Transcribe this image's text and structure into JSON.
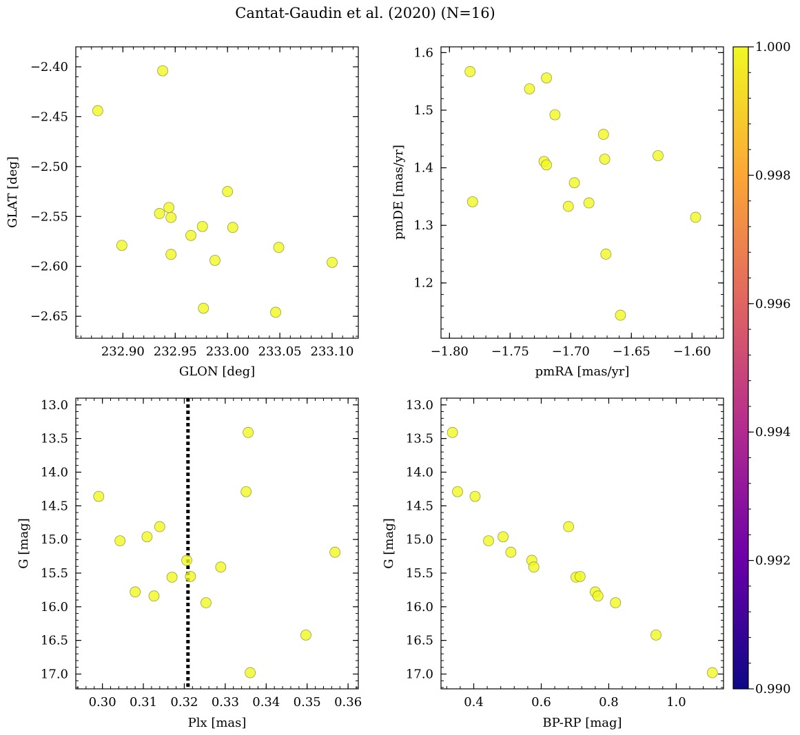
{
  "figure": {
    "title": "Cantat-Gaudin et al. (2020) (N=16)"
  },
  "colorbar": {
    "min": 0.99,
    "max": 1.0,
    "ticks": [
      0.99,
      0.992,
      0.994,
      0.996,
      0.998,
      1.0
    ],
    "tick_labels": [
      "0.990",
      "0.992",
      "0.994",
      "0.996",
      "0.998",
      "1.000"
    ],
    "colormap": "plasma",
    "stops": [
      "#0d0887",
      "#6a00a8",
      "#b12a90",
      "#e16462",
      "#fca636",
      "#f0f921"
    ]
  },
  "marker": {
    "fill": "#f0f921",
    "opacity": 0.8,
    "edge": "#9c9c3a"
  },
  "chart_data": [
    {
      "type": "scatter",
      "name": "glon-glat",
      "xlabel": "GLON [deg]",
      "ylabel": "GLAT [deg]",
      "xlim": [
        232.855,
        233.125
      ],
      "ylim": [
        -2.672,
        -2.38
      ],
      "invert_y": false,
      "xticks": [
        232.9,
        232.95,
        233.0,
        233.05,
        233.1
      ],
      "xtick_labels": [
        "232.90",
        "232.95",
        "233.00",
        "233.05",
        "233.10"
      ],
      "yticks": [
        -2.4,
        -2.45,
        -2.5,
        -2.55,
        -2.6,
        -2.65
      ],
      "ytick_labels": [
        "−2.40",
        "−2.45",
        "−2.50",
        "−2.55",
        "−2.60",
        "−2.65"
      ],
      "x_minor": 0.01,
      "y_minor": 0.01,
      "x": [
        232.876,
        232.938,
        232.899,
        232.935,
        232.944,
        232.946,
        232.946,
        232.965,
        232.976,
        232.977,
        232.988,
        233.0,
        233.005,
        233.049,
        233.046,
        233.1
      ],
      "y": [
        -2.444,
        -2.404,
        -2.579,
        -2.547,
        -2.541,
        -2.551,
        -2.588,
        -2.569,
        -2.56,
        -2.642,
        -2.594,
        -2.525,
        -2.561,
        -2.581,
        -2.646,
        -2.596
      ],
      "c": [
        1,
        1,
        1,
        1,
        1,
        1,
        1,
        1,
        1,
        1,
        1,
        1,
        1,
        1,
        1,
        1
      ]
    },
    {
      "type": "scatter",
      "name": "pmra-pmde",
      "xlabel": "pmRA [mas/yr]",
      "ylabel": "pmDE [mas/yr]",
      "xlim": [
        -1.807,
        -1.574
      ],
      "ylim": [
        1.104,
        1.61
      ],
      "invert_y": false,
      "xticks": [
        -1.8,
        -1.75,
        -1.7,
        -1.65,
        -1.6
      ],
      "xtick_labels": [
        "−1.80",
        "−1.75",
        "−1.70",
        "−1.65",
        "−1.60"
      ],
      "yticks": [
        1.2,
        1.3,
        1.4,
        1.5,
        1.6
      ],
      "ytick_labels": [
        "1.2",
        "1.3",
        "1.4",
        "1.5",
        "1.6"
      ],
      "x_minor": 0.01,
      "y_minor": 0.02,
      "x": [
        -1.783,
        -1.781,
        -1.734,
        -1.72,
        -1.722,
        -1.72,
        -1.713,
        -1.697,
        -1.702,
        -1.685,
        -1.673,
        -1.672,
        -1.671,
        -1.659,
        -1.628,
        -1.597
      ],
      "y": [
        1.567,
        1.341,
        1.537,
        1.556,
        1.411,
        1.405,
        1.492,
        1.374,
        1.333,
        1.339,
        1.458,
        1.415,
        1.25,
        1.144,
        1.421,
        1.314
      ],
      "c": [
        1,
        1,
        1,
        1,
        1,
        1,
        1,
        1,
        1,
        1,
        1,
        1,
        1,
        1,
        1,
        1
      ]
    },
    {
      "type": "scatter",
      "name": "plx-g",
      "xlabel": "Plx [mas]",
      "ylabel": "G [mag]",
      "xlim": [
        0.2935,
        0.3625
      ],
      "ylim": [
        13.0,
        17.0
      ],
      "axis_range": [
        12.9,
        17.22
      ],
      "invert_y": true,
      "xticks": [
        0.3,
        0.31,
        0.32,
        0.33,
        0.34,
        0.35,
        0.36
      ],
      "xtick_labels": [
        "0.30",
        "0.31",
        "0.32",
        "0.33",
        "0.34",
        "0.35",
        "0.36"
      ],
      "yticks": [
        13.0,
        13.5,
        14.0,
        14.5,
        15.0,
        15.5,
        16.0,
        16.5,
        17.0
      ],
      "ytick_labels": [
        "13.0",
        "13.5",
        "14.0",
        "14.5",
        "15.0",
        "15.5",
        "16.0",
        "16.5",
        "17.0"
      ],
      "x_minor": 0.002,
      "y_minor": 0.1,
      "vline": 0.3209,
      "x": [
        0.2991,
        0.3043,
        0.308,
        0.3109,
        0.3126,
        0.314,
        0.317,
        0.3206,
        0.3215,
        0.3253,
        0.3289,
        0.3351,
        0.3356,
        0.3361,
        0.3497,
        0.3568
      ],
      "y": [
        14.36,
        15.02,
        15.78,
        14.96,
        15.84,
        14.81,
        15.56,
        15.31,
        15.55,
        15.94,
        15.41,
        14.29,
        13.41,
        16.98,
        16.42,
        15.19
      ],
      "c": [
        1,
        1,
        1,
        1,
        1,
        1,
        1,
        1,
        1,
        1,
        1,
        1,
        1,
        1,
        1,
        1
      ]
    },
    {
      "type": "scatter",
      "name": "bprp-g",
      "xlabel": "BP-RP [mag]",
      "ylabel": "G [mag]",
      "xlim": [
        0.303,
        1.14
      ],
      "ylim": [
        13.0,
        17.0
      ],
      "axis_range": [
        12.9,
        17.22
      ],
      "invert_y": true,
      "xticks": [
        0.4,
        0.6,
        0.8,
        1.0
      ],
      "xtick_labels": [
        "0.4",
        "0.6",
        "0.8",
        "1.0"
      ],
      "yticks": [
        13.0,
        13.5,
        14.0,
        14.5,
        15.0,
        15.5,
        16.0,
        16.5,
        17.0
      ],
      "ytick_labels": [
        "13.0",
        "13.5",
        "14.0",
        "14.5",
        "15.0",
        "15.5",
        "16.0",
        "16.5",
        "17.0"
      ],
      "x_minor": 0.04,
      "y_minor": 0.1,
      "x": [
        0.337,
        0.352,
        0.404,
        0.444,
        0.487,
        0.51,
        0.572,
        0.578,
        0.681,
        0.703,
        0.715,
        0.76,
        0.768,
        0.82,
        0.94,
        1.107
      ],
      "y": [
        13.41,
        14.29,
        14.36,
        15.02,
        14.96,
        15.19,
        15.31,
        15.41,
        14.81,
        15.56,
        15.55,
        15.78,
        15.84,
        15.94,
        16.42,
        16.98
      ],
      "c": [
        1,
        1,
        1,
        1,
        1,
        1,
        1,
        1,
        1,
        1,
        1,
        1,
        1,
        1,
        1,
        1
      ]
    }
  ]
}
